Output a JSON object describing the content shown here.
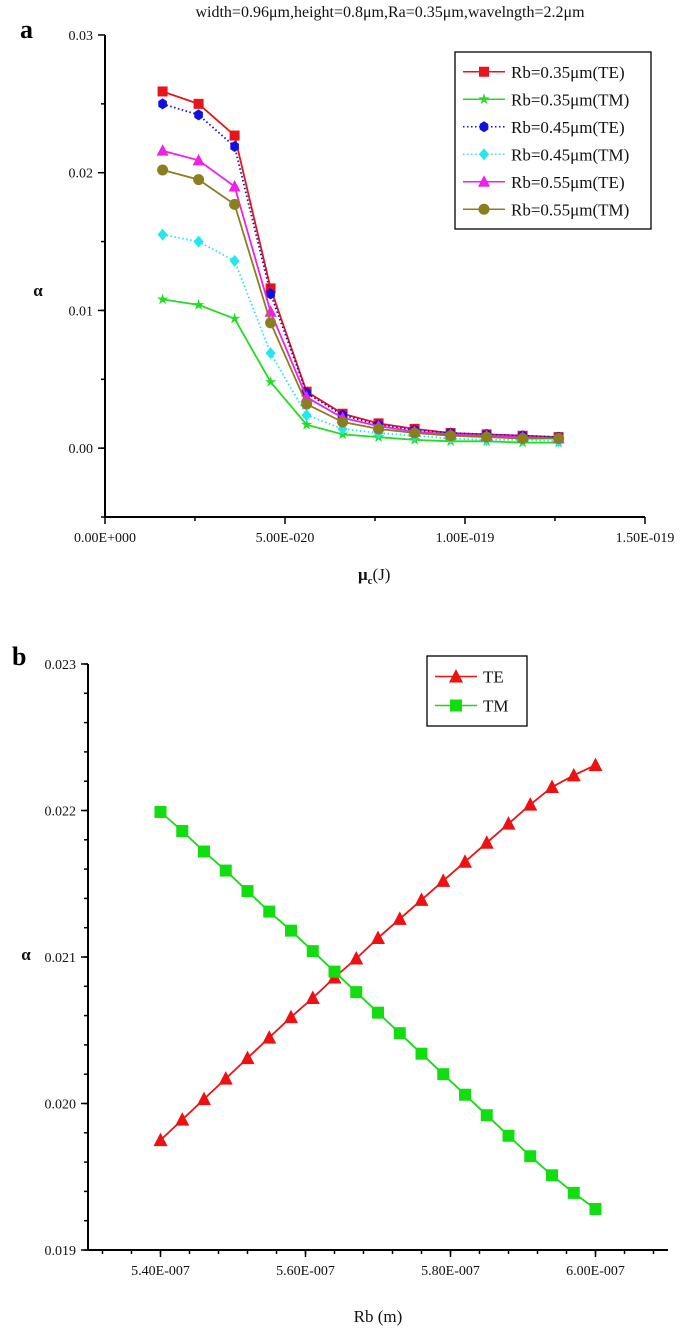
{
  "chart_data": [
    {
      "type": "line",
      "panel_label": "a",
      "title": "width=0.96μm,height=0.8μm,Ra=0.35μm,wavelngth=2.2μm",
      "xlabel": "μ",
      "xlabel_sub": "c",
      "xlabel_unit": "(J)",
      "ylabel": "α",
      "xlim": [
        0,
        1.5e-19
      ],
      "ylim": [
        -0.005,
        0.03
      ],
      "xticks": [
        0,
        5e-20,
        1e-19,
        1.5e-19
      ],
      "xtick_labels": [
        "0.00E+000",
        "5.00E-020",
        "1.00E-019",
        "1.50E-019"
      ],
      "yticks": [
        0,
        0.01,
        0.02,
        0.03
      ],
      "ytick_labels": [
        "0.00",
        "0.01",
        "0.02",
        "0.03"
      ],
      "legend_position": "top-right",
      "x": [
        1.6e-20,
        2.6e-20,
        3.6e-20,
        4.6e-20,
        5.6e-20,
        6.6e-20,
        7.6e-20,
        8.6e-20,
        9.6e-20,
        1.06e-19,
        1.16e-19,
        1.26e-19
      ],
      "series": [
        {
          "name": "Rb=0.35μm(TE)",
          "color": "#e8141c",
          "marker": "square",
          "dash": "solid",
          "values": [
            0.0259,
            0.025,
            0.0227,
            0.0116,
            0.0041,
            0.0025,
            0.0018,
            0.0014,
            0.0011,
            0.001,
            0.0009,
            0.0008
          ]
        },
        {
          "name": "Rb=0.35μm(TM)",
          "color": "#22dd22",
          "marker": "star",
          "dash": "solid",
          "values": [
            0.0108,
            0.0104,
            0.0094,
            0.0048,
            0.0017,
            0.001,
            0.0008,
            0.0006,
            0.0005,
            0.0005,
            0.0004,
            0.0004
          ]
        },
        {
          "name": "Rb=0.45μm(TE)",
          "color": "#1010e0",
          "marker": "hexagon",
          "dash": "dotted",
          "values": [
            0.025,
            0.0242,
            0.0219,
            0.0112,
            0.004,
            0.0024,
            0.0017,
            0.0013,
            0.0011,
            0.001,
            0.0009,
            0.0008
          ]
        },
        {
          "name": "Rb=0.45μm(TM)",
          "color": "#22e6f0",
          "marker": "diamond",
          "dash": "dotted",
          "values": [
            0.0155,
            0.015,
            0.0136,
            0.0069,
            0.0024,
            0.0014,
            0.0011,
            0.0009,
            0.0007,
            0.0006,
            0.0006,
            0.0005
          ]
        },
        {
          "name": "Rb=0.55μm(TE)",
          "color": "#f020e8",
          "marker": "triangle",
          "dash": "solid",
          "values": [
            0.0216,
            0.0209,
            0.019,
            0.0099,
            0.0037,
            0.0022,
            0.0016,
            0.0012,
            0.001,
            0.0009,
            0.0008,
            0.0007
          ]
        },
        {
          "name": "Rb=0.55μm(TM)",
          "color": "#8a7f1c",
          "marker": "circle",
          "dash": "solid",
          "values": [
            0.0202,
            0.0195,
            0.0177,
            0.0091,
            0.0032,
            0.0019,
            0.0014,
            0.0011,
            0.0009,
            0.0008,
            0.0007,
            0.0007
          ]
        }
      ]
    },
    {
      "type": "line",
      "panel_label": "b",
      "xlabel": "Rb (m)",
      "ylabel": "α",
      "xlim": [
        5.3e-07,
        6.1e-07
      ],
      "ylim": [
        0.019,
        0.023
      ],
      "xticks": [
        5.4e-07,
        5.6e-07,
        5.8e-07,
        6e-07
      ],
      "xtick_labels": [
        "5.40E-007",
        "5.60E-007",
        "5.80E-007",
        "6.00E-007"
      ],
      "yticks": [
        0.019,
        0.02,
        0.021,
        0.022,
        0.023
      ],
      "ytick_labels": [
        "0.019",
        "0.020",
        "0.021",
        "0.022",
        "0.023"
      ],
      "legend_position": "top-right",
      "x": [
        5.4e-07,
        5.43e-07,
        5.46e-07,
        5.49e-07,
        5.52e-07,
        5.55e-07,
        5.58e-07,
        5.61e-07,
        5.64e-07,
        5.67e-07,
        5.7e-07,
        5.73e-07,
        5.76e-07,
        5.79e-07,
        5.82e-07,
        5.85e-07,
        5.88e-07,
        5.91e-07,
        5.94e-07,
        5.97e-07,
        6e-07
      ],
      "series": [
        {
          "name": "TE",
          "color": "#ee1111",
          "marker": "triangle",
          "dash": "solid",
          "values": [
            0.01975,
            0.01989,
            0.02003,
            0.02017,
            0.02031,
            0.02045,
            0.02059,
            0.02072,
            0.02086,
            0.02099,
            0.02113,
            0.02126,
            0.02139,
            0.02152,
            0.02165,
            0.02178,
            0.02191,
            0.02204,
            0.02216,
            0.02224,
            0.02231
          ]
        },
        {
          "name": "TM",
          "color": "#11dd11",
          "marker": "square",
          "dash": "solid",
          "values": [
            0.02199,
            0.02186,
            0.02172,
            0.02159,
            0.02145,
            0.02131,
            0.02118,
            0.02104,
            0.0209,
            0.02076,
            0.02062,
            0.02048,
            0.02034,
            0.0202,
            0.02006,
            0.01992,
            0.01978,
            0.01964,
            0.01951,
            0.01939,
            0.01928
          ]
        }
      ]
    }
  ]
}
